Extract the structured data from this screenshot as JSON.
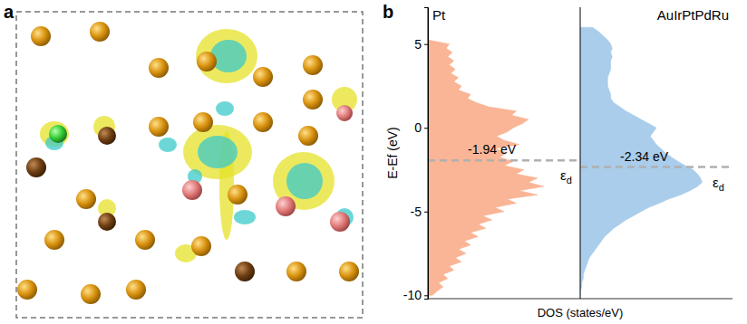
{
  "chart_data": {
    "type": "area",
    "orientation": "horizontal",
    "panel_label": "b",
    "x_label": "E-Ef (eV)",
    "y_label": "DOS (states/eV)",
    "xlim": [
      -10.2,
      7.2
    ],
    "xticks": [
      -10,
      -5,
      0,
      5
    ],
    "ylim": [
      0,
      1
    ],
    "tick_labels": "x",
    "x": [
      -10,
      -9.75,
      -9.5,
      -9.25,
      -9,
      -8.75,
      -8.5,
      -8.25,
      -8,
      -7.75,
      -7.5,
      -7.25,
      -7,
      -6.75,
      -6.5,
      -6.25,
      -6,
      -5.75,
      -5.5,
      -5.25,
      -5,
      -4.75,
      -4.5,
      -4.25,
      -4,
      -3.75,
      -3.5,
      -3.25,
      -3,
      -2.75,
      -2.5,
      -2.25,
      -2,
      -1.75,
      -1.5,
      -1.25,
      -1,
      -0.75,
      -0.5,
      -0.25,
      0,
      0.25,
      0.5,
      0.75,
      1,
      1.25,
      1.5,
      1.75,
      2,
      2.25,
      2.5,
      2.75,
      3,
      3.25,
      3.5,
      3.75,
      4,
      4.25,
      4.5,
      4.75,
      5,
      5.25,
      5.5,
      5.75,
      6
    ],
    "series": [
      {
        "name": "Pt",
        "color": "#f9b595",
        "values": [
          0.03,
          0.06,
          0.1,
          0.07,
          0.13,
          0.1,
          0.17,
          0.14,
          0.22,
          0.18,
          0.25,
          0.2,
          0.28,
          0.24,
          0.33,
          0.28,
          0.38,
          0.33,
          0.42,
          0.36,
          0.5,
          0.44,
          0.58,
          0.52,
          0.72,
          0.6,
          0.76,
          0.66,
          0.72,
          0.58,
          0.63,
          0.5,
          0.56,
          0.47,
          0.52,
          0.44,
          0.6,
          0.5,
          0.45,
          0.52,
          0.56,
          0.62,
          0.66,
          0.55,
          0.58,
          0.4,
          0.32,
          0.26,
          0.28,
          0.2,
          0.22,
          0.17,
          0.2,
          0.15,
          0.18,
          0.14,
          0.17,
          0.13,
          0.16,
          0.12,
          0.14,
          0,
          0,
          0,
          0
        ],
        "d_band_center": -1.94,
        "d_band_center_label": "-1.94 eV",
        "center_symbol": "εd"
      },
      {
        "name": "AuIrPtPdRu",
        "color": "#a9cdea",
        "values": [
          0,
          0,
          0.01,
          0.01,
          0.02,
          0.02,
          0.03,
          0.04,
          0.05,
          0.06,
          0.08,
          0.1,
          0.12,
          0.14,
          0.16,
          0.19,
          0.22,
          0.26,
          0.3,
          0.35,
          0.4,
          0.45,
          0.52,
          0.58,
          0.66,
          0.72,
          0.77,
          0.8,
          0.79,
          0.77,
          0.74,
          0.69,
          0.64,
          0.6,
          0.56,
          0.53,
          0.5,
          0.48,
          0.46,
          0.48,
          0.5,
          0.45,
          0.4,
          0.35,
          0.3,
          0.26,
          0.22,
          0.2,
          0.2,
          0.19,
          0.18,
          0.18,
          0.18,
          0.19,
          0.2,
          0.2,
          0.2,
          0.21,
          0.2,
          0.21,
          0.2,
          0.18,
          0.15,
          0.12,
          0.08
        ],
        "d_band_center": -2.34,
        "d_band_center_label": "-2.34 eV",
        "center_symbol": "εd"
      }
    ]
  },
  "image_panel": {
    "label": "a"
  }
}
